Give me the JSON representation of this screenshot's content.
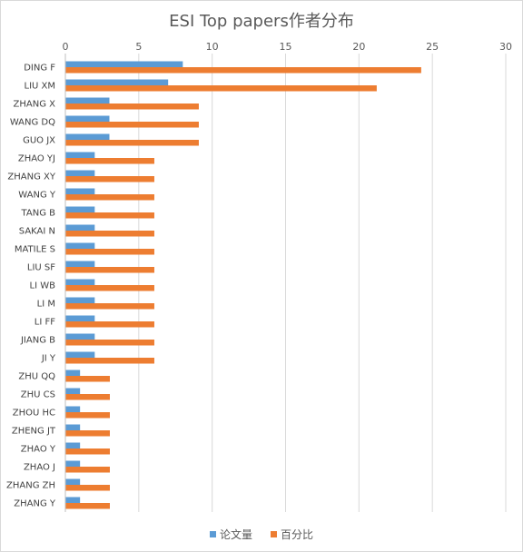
{
  "chart_data": {
    "type": "bar",
    "orientation": "horizontal",
    "title": "ESI Top papers作者分布",
    "xlabel": "",
    "ylabel": "",
    "xlim": [
      0,
      30
    ],
    "xticks": [
      0,
      5,
      10,
      15,
      20,
      25,
      30
    ],
    "grid": true,
    "legend_position": "bottom",
    "categories": [
      "DING F",
      "LIU XM",
      "ZHANG X",
      "WANG DQ",
      "GUO JX",
      "ZHAO YJ",
      "ZHANG XY",
      "WANG Y",
      "TANG B",
      "SAKAI N",
      "MATILE S",
      "LIU SF",
      "LI WB",
      "LI M",
      "LI FF",
      "JIANG B",
      "JI Y",
      "ZHU QQ",
      "ZHU CS",
      "ZHOU HC",
      "ZHENG JT",
      "ZHAO Y",
      "ZHAO J",
      "ZHANG ZH",
      "ZHANG Y"
    ],
    "series": [
      {
        "name": "论文量",
        "color": "#5b9bd5",
        "values": [
          8,
          7,
          3,
          3,
          3,
          2,
          2,
          2,
          2,
          2,
          2,
          2,
          2,
          2,
          2,
          2,
          2,
          1,
          1,
          1,
          1,
          1,
          1,
          1,
          1
        ]
      },
      {
        "name": "百分比",
        "color": "#ed7d31",
        "values": [
          24.24,
          21.21,
          9.09,
          9.09,
          9.09,
          6.06,
          6.06,
          6.06,
          6.06,
          6.06,
          6.06,
          6.06,
          6.06,
          6.06,
          6.06,
          6.06,
          6.06,
          3.03,
          3.03,
          3.03,
          3.03,
          3.03,
          3.03,
          3.03,
          3.03
        ]
      }
    ]
  }
}
